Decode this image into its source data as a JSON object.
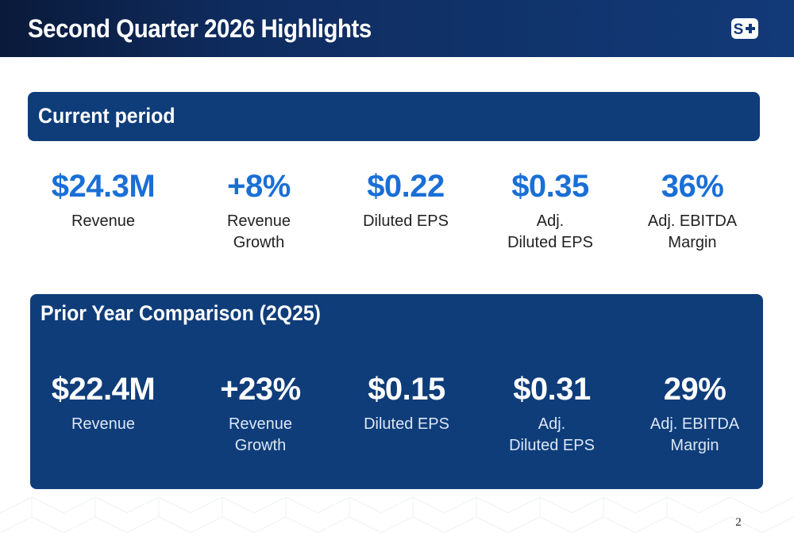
{
  "slide": {
    "title": "Second Quarter 2026 Highlights",
    "page_number": "2",
    "logo_icon": "s-plus-logo-icon",
    "colors": {
      "header": "#123a78",
      "panel": "#0f3d7a",
      "accent_value": "#1a6fd6"
    }
  },
  "current": {
    "heading": "Current period",
    "metrics": [
      {
        "value": "$24.3M",
        "label": "Revenue"
      },
      {
        "value": "+8%",
        "label": "Revenue\nGrowth"
      },
      {
        "value": "$0.22",
        "label": "Diluted EPS"
      },
      {
        "value": "$0.35",
        "label": "Adj.\nDiluted EPS"
      },
      {
        "value": "36%",
        "label": "Adj. EBITDA\nMargin"
      }
    ]
  },
  "prior": {
    "heading": "Prior Year Comparison (2Q25)",
    "metrics": [
      {
        "value": "$22.4M",
        "label": "Revenue"
      },
      {
        "value": "+23%",
        "label": "Revenue\nGrowth"
      },
      {
        "value": "$0.15",
        "label": "Diluted EPS"
      },
      {
        "value": "$0.31",
        "label": "Adj.\nDiluted EPS"
      },
      {
        "value": "29%",
        "label": "Adj. EBITDA\nMargin"
      }
    ]
  }
}
